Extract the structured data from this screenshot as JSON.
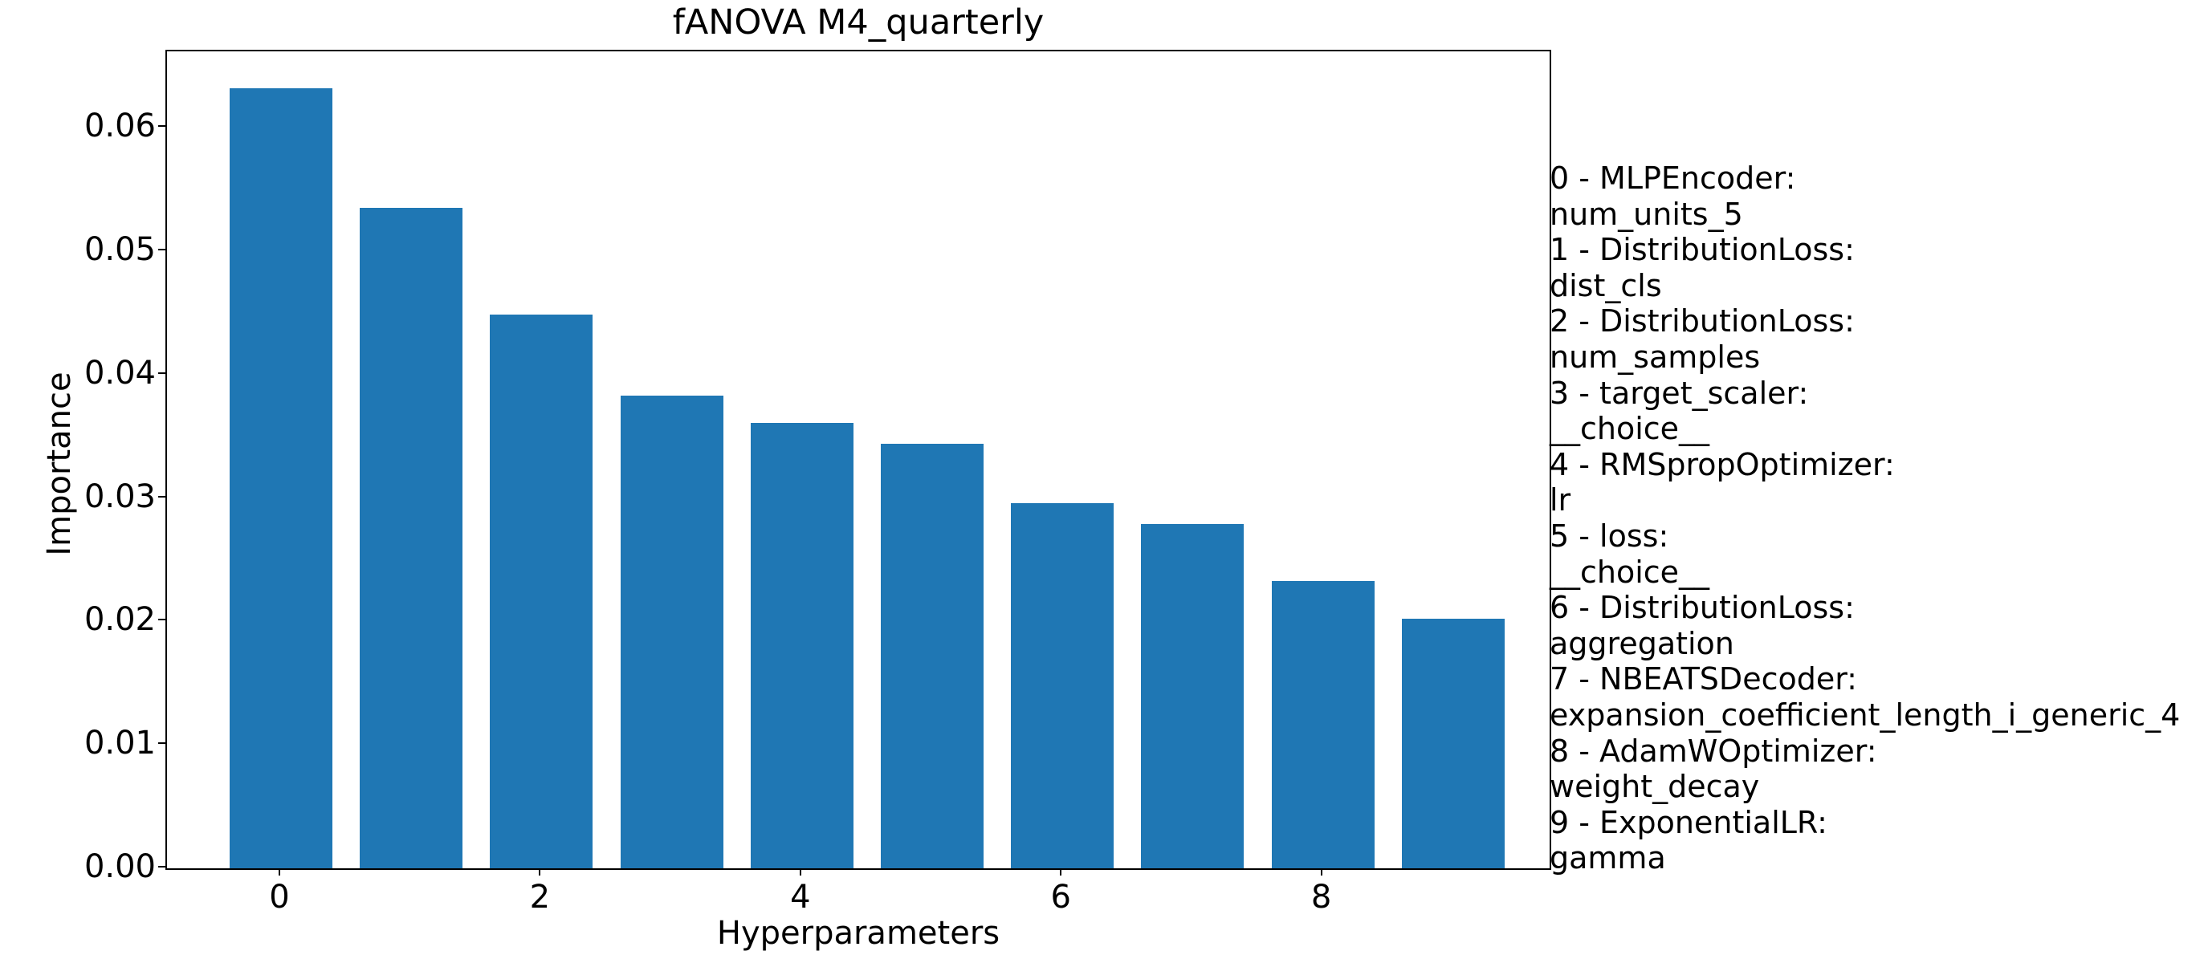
{
  "title": "fANOVA M4_quarterly",
  "y_axis": {
    "label": "Importance",
    "ticks": [
      "0.00",
      "0.01",
      "0.02",
      "0.03",
      "0.04",
      "0.05",
      "0.06"
    ]
  },
  "x_axis": {
    "label": "Hyperparameters",
    "ticks": [
      {
        "label": "0",
        "index": 0
      },
      {
        "label": "2",
        "index": 2
      },
      {
        "label": "4",
        "index": 4
      },
      {
        "label": "6",
        "index": 6
      },
      {
        "label": "8",
        "index": 8
      }
    ]
  },
  "legend": {
    "entries": [
      {
        "label": "0 - MLPEncoder:",
        "param": "num_units_5"
      },
      {
        "label": "1 - DistributionLoss:",
        "param": "dist_cls"
      },
      {
        "label": "2 - DistributionLoss:",
        "param": "num_samples"
      },
      {
        "label": "3 - target_scaler:",
        "param": "__choice__"
      },
      {
        "label": "4 - RMSpropOptimizer:",
        "param": "lr"
      },
      {
        "label": "5 - loss:",
        "param": "__choice__"
      },
      {
        "label": "6 - DistributionLoss:",
        "param": "aggregation"
      },
      {
        "label": "7 - NBEATSDecoder:",
        "param": "expansion_coefficient_length_i_generic_4"
      },
      {
        "label": "8 - AdamWOptimizer:",
        "param": "weight_decay"
      },
      {
        "label": "9 - ExponentialLR:",
        "param": "gamma"
      }
    ]
  },
  "colors": {
    "bar": "#1f77b4",
    "text": "#000000",
    "spine": "#000000",
    "background": "#ffffff"
  },
  "chart_data": {
    "type": "bar",
    "title": "fANOVA M4_quarterly",
    "xlabel": "Hyperparameters",
    "ylabel": "Importance",
    "categories": [
      0,
      1,
      2,
      3,
      4,
      5,
      6,
      7,
      8,
      9
    ],
    "values": [
      0.0632,
      0.0535,
      0.0449,
      0.0383,
      0.0361,
      0.0344,
      0.0296,
      0.0279,
      0.0233,
      0.0202
    ],
    "ylim": [
      0,
      0.0662
    ],
    "y_tick_step": 0.01,
    "grid": false,
    "bar_color": "#1f77b4",
    "legend_position": "right-of-plot",
    "legend_labels": [
      "0 - MLPEncoder: num_units_5",
      "1 - DistributionLoss: dist_cls",
      "2 - DistributionLoss: num_samples",
      "3 - target_scaler: __choice__",
      "4 - RMSpropOptimizer: lr",
      "5 - loss: __choice__",
      "6 - DistributionLoss: aggregation",
      "7 - NBEATSDecoder: expansion_coefficient_length_i_generic_4",
      "8 - AdamWOptimizer: weight_decay",
      "9 - ExponentialLR: gamma"
    ]
  }
}
